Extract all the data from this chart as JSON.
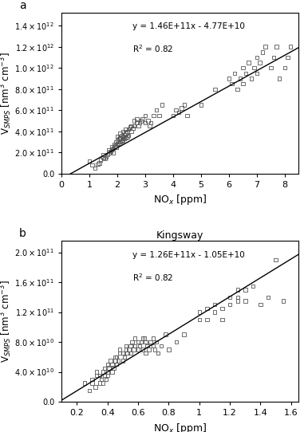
{
  "panel_a": {
    "label": "a",
    "title": "",
    "equation": "y = 1.46E+11x - 4.77E+10",
    "r2": "R$^2$ = 0.82",
    "slope": 146000000000.0,
    "intercept": -47700000000.0,
    "xlim": [
      0,
      8.5
    ],
    "ylim": [
      0,
      1520000000000.0
    ],
    "xlabel": "NO$_x$ [ppm]",
    "ylabel": "V$_{SMPS}$ [nm$^3$ cm$^{-3}$]",
    "yticks": [
      0,
      200000000000.0,
      400000000000.0,
      600000000000.0,
      800000000000.0,
      1000000000000.0,
      1200000000000.0,
      1400000000000.0
    ],
    "xticks": [
      0,
      1,
      2,
      3,
      4,
      5,
      6,
      7,
      8
    ],
    "scatter_x": [
      1.0,
      1.1,
      1.2,
      1.3,
      1.35,
      1.4,
      1.5,
      1.5,
      1.55,
      1.6,
      1.65,
      1.7,
      1.7,
      1.75,
      1.8,
      1.8,
      1.85,
      1.85,
      1.9,
      1.9,
      1.95,
      1.95,
      2.0,
      2.0,
      2.0,
      2.05,
      2.05,
      2.1,
      2.1,
      2.1,
      2.15,
      2.15,
      2.2,
      2.2,
      2.2,
      2.25,
      2.25,
      2.3,
      2.3,
      2.3,
      2.35,
      2.35,
      2.4,
      2.4,
      2.45,
      2.5,
      2.5,
      2.55,
      2.6,
      2.6,
      2.7,
      2.7,
      2.75,
      2.8,
      2.85,
      2.9,
      3.0,
      3.0,
      3.1,
      3.15,
      3.2,
      3.3,
      3.4,
      3.5,
      3.6,
      4.0,
      4.1,
      4.2,
      4.3,
      4.4,
      4.5,
      5.0,
      5.5,
      6.0,
      6.1,
      6.2,
      6.3,
      6.4,
      6.5,
      6.5,
      6.6,
      6.7,
      6.8,
      6.9,
      7.0,
      7.0,
      7.1,
      7.2,
      7.3,
      7.5,
      7.6,
      7.7,
      7.8,
      8.0,
      8.1,
      8.2
    ],
    "scatter_y": [
      120000000000.0,
      80000000000.0,
      50000000000.0,
      90000000000.0,
      100000000000.0,
      130000000000.0,
      150000000000.0,
      180000000000.0,
      140000000000.0,
      160000000000.0,
      180000000000.0,
      200000000000.0,
      220000000000.0,
      210000000000.0,
      230000000000.0,
      250000000000.0,
      200000000000.0,
      240000000000.0,
      260000000000.0,
      280000000000.0,
      250000000000.0,
      300000000000.0,
      280000000000.0,
      320000000000.0,
      350000000000.0,
      290000000000.0,
      330000000000.0,
      300000000000.0,
      340000000000.0,
      380000000000.0,
      310000000000.0,
      360000000000.0,
      320000000000.0,
      350000000000.0,
      400000000000.0,
      330000000000.0,
      370000000000.0,
      340000000000.0,
      380000000000.0,
      420000000000.0,
      350000000000.0,
      400000000000.0,
      360000000000.0,
      420000000000.0,
      440000000000.0,
      400000000000.0,
      450000000000.0,
      430000000000.0,
      450000000000.0,
      500000000000.0,
      480000000000.0,
      520000000000.0,
      450000000000.0,
      480000000000.0,
      500000000000.0,
      520000000000.0,
      550000000000.0,
      480000000000.0,
      500000000000.0,
      450000000000.0,
      480000000000.0,
      550000000000.0,
      600000000000.0,
      550000000000.0,
      650000000000.0,
      550000000000.0,
      600000000000.0,
      580000000000.0,
      620000000000.0,
      650000000000.0,
      550000000000.0,
      650000000000.0,
      800000000000.0,
      900000000000.0,
      850000000000.0,
      950000000000.0,
      800000000000.0,
      900000000000.0,
      1000000000000.0,
      850000000000.0,
      950000000000.0,
      1050000000000.0,
      900000000000.0,
      1000000000000.0,
      1100000000000.0,
      950000000000.0,
      1050000000000.0,
      1150000000000.0,
      1200000000000.0,
      1000000000000.0,
      1100000000000.0,
      1200000000000.0,
      900000000000.0,
      1000000000000.0,
      1100000000000.0,
      1200000000000.0
    ]
  },
  "panel_b": {
    "label": "b",
    "title": "Kingsway",
    "equation": "y = 1.26E+11x - 1.05E+10",
    "r2": "R$^2$ = 0.82",
    "slope": 126000000000.0,
    "intercept": -10500000000.0,
    "xlim": [
      0.1,
      1.65
    ],
    "ylim": [
      0,
      215000000000.0
    ],
    "xlabel": "NO$_x$ [ppm]",
    "ylabel": "V$_{SMPS}$ [nm$^3$ cm$^{-3}$]",
    "yticks": [
      0,
      40000000000.0,
      80000000000.0,
      120000000000.0,
      160000000000.0,
      200000000000.0
    ],
    "xticks": [
      0.2,
      0.4,
      0.6,
      0.8,
      1.0,
      1.2,
      1.4,
      1.6
    ],
    "scatter_x": [
      0.25,
      0.28,
      0.3,
      0.3,
      0.32,
      0.33,
      0.33,
      0.35,
      0.35,
      0.36,
      0.37,
      0.37,
      0.38,
      0.38,
      0.39,
      0.4,
      0.4,
      0.4,
      0.41,
      0.42,
      0.43,
      0.43,
      0.44,
      0.45,
      0.45,
      0.46,
      0.46,
      0.47,
      0.48,
      0.48,
      0.5,
      0.5,
      0.51,
      0.52,
      0.52,
      0.53,
      0.54,
      0.55,
      0.55,
      0.56,
      0.57,
      0.58,
      0.58,
      0.6,
      0.6,
      0.61,
      0.62,
      0.63,
      0.63,
      0.64,
      0.65,
      0.65,
      0.66,
      0.67,
      0.68,
      0.7,
      0.7,
      0.71,
      0.72,
      0.73,
      0.75,
      0.78,
      0.8,
      0.85,
      0.9,
      1.0,
      1.0,
      1.05,
      1.05,
      1.1,
      1.1,
      1.15,
      1.15,
      1.2,
      1.2,
      1.25,
      1.25,
      1.25,
      1.3,
      1.3,
      1.35,
      1.4,
      1.45,
      1.5,
      1.55
    ],
    "scatter_y": [
      25000000000.0,
      15000000000.0,
      25000000000.0,
      30000000000.0,
      20000000000.0,
      35000000000.0,
      40000000000.0,
      25000000000.0,
      35000000000.0,
      30000000000.0,
      25000000000.0,
      40000000000.0,
      35000000000.0,
      45000000000.0,
      30000000000.0,
      35000000000.0,
      40000000000.0,
      50000000000.0,
      45000000000.0,
      55000000000.0,
      40000000000.0,
      50000000000.0,
      45000000000.0,
      55000000000.0,
      60000000000.0,
      50000000000.0,
      60000000000.0,
      55000000000.0,
      65000000000.0,
      70000000000.0,
      55000000000.0,
      65000000000.0,
      60000000000.0,
      70000000000.0,
      75000000000.0,
      65000000000.0,
      70000000000.0,
      65000000000.0,
      75000000000.0,
      80000000000.0,
      70000000000.0,
      75000000000.0,
      85000000000.0,
      70000000000.0,
      80000000000.0,
      75000000000.0,
      80000000000.0,
      85000000000.0,
      70000000000.0,
      85000000000.0,
      65000000000.0,
      80000000000.0,
      75000000000.0,
      70000000000.0,
      80000000000.0,
      75000000000.0,
      85000000000.0,
      70000000000.0,
      80000000000.0,
      65000000000.0,
      75000000000.0,
      90000000000.0,
      70000000000.0,
      80000000000.0,
      90000000000.0,
      110000000000.0,
      120000000000.0,
      110000000000.0,
      125000000000.0,
      120000000000.0,
      130000000000.0,
      110000000000.0,
      125000000000.0,
      130000000000.0,
      140000000000.0,
      135000000000.0,
      150000000000.0,
      140000000000.0,
      150000000000.0,
      135000000000.0,
      155000000000.0,
      130000000000.0,
      140000000000.0,
      190000000000.0,
      135000000000.0
    ]
  }
}
